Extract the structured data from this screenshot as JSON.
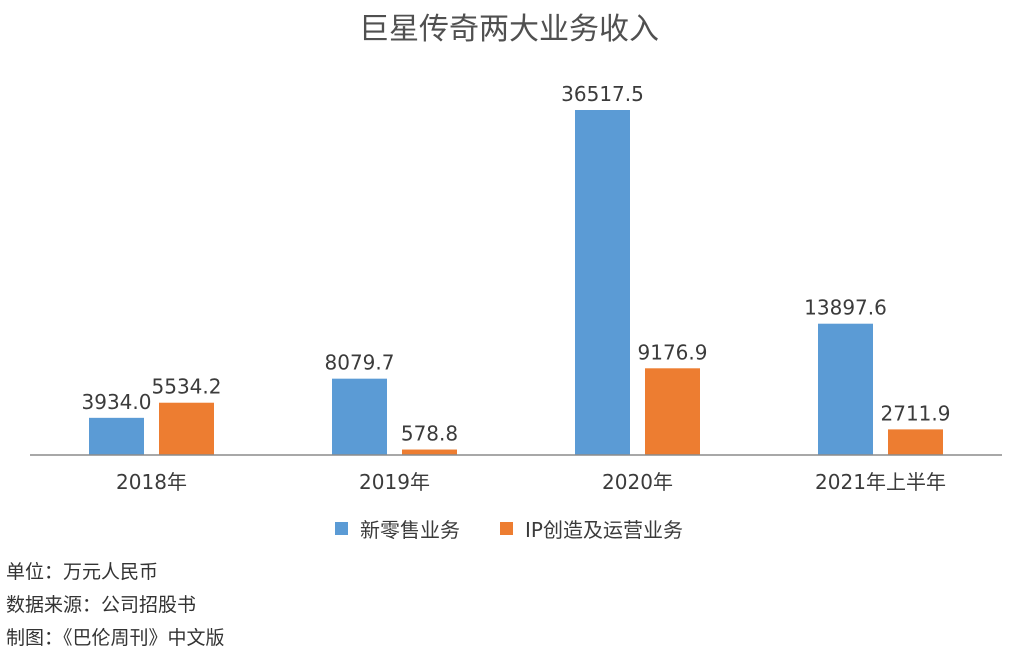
{
  "title": "巨星传奇两大业务收入",
  "chart_data": {
    "type": "bar",
    "categories": [
      "2018年",
      "2019年",
      "2020年",
      "2021年上半年"
    ],
    "series": [
      {
        "name": "新零售业务",
        "values": [
          3934.0,
          8079.7,
          36517.5,
          13897.6
        ],
        "color": "#5b9bd5"
      },
      {
        "name": "IP创造及运营业务",
        "values": [
          5534.2,
          578.8,
          9176.9,
          2711.9
        ],
        "color": "#ed7d31"
      }
    ],
    "value_labels": {
      "series0": [
        "3934.0",
        "8079.7",
        "36517.5",
        "13897.6"
      ],
      "series1": [
        "5534.2",
        "578.8",
        "9176.9",
        "2711.9"
      ]
    },
    "ylim": [
      0,
      36517.5
    ],
    "grid": false,
    "legend_position": "bottom"
  },
  "notes": {
    "unit": "单位：万元人民币",
    "source": "数据来源：公司招股书",
    "made_by": "制图：《巴伦周刊》中文版"
  }
}
